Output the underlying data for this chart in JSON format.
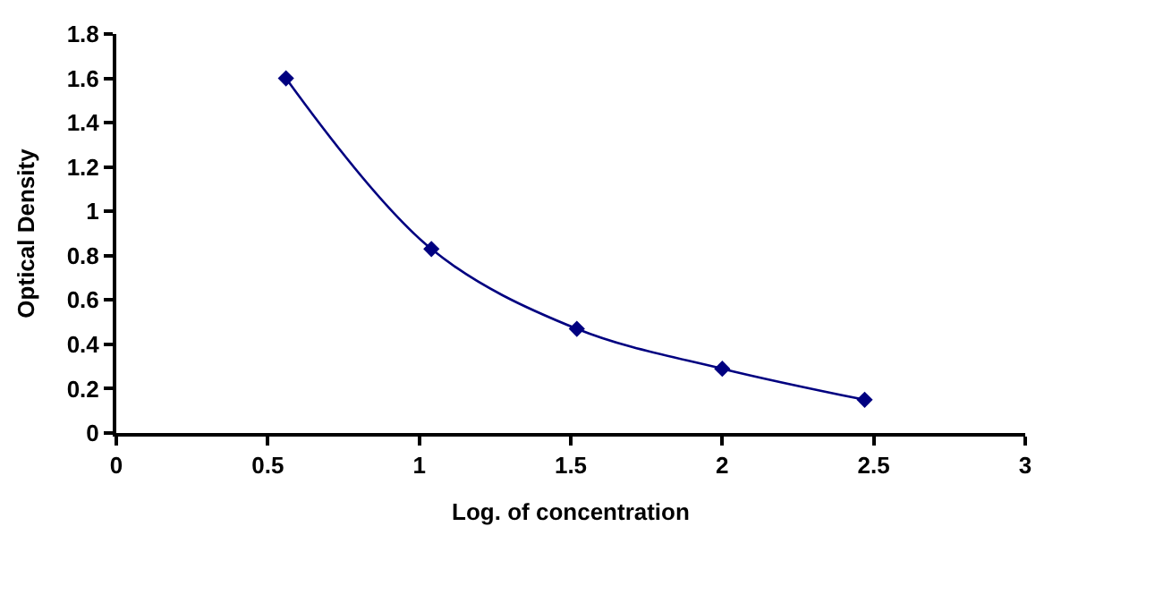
{
  "chart_data": {
    "type": "line",
    "xlabel": "Log. of concentration",
    "ylabel": "Optical Density",
    "x": [
      0.56,
      1.04,
      1.52,
      2.0,
      2.47
    ],
    "series": [
      {
        "color": "#000080",
        "values": [
          1.6,
          0.83,
          0.47,
          0.29,
          0.15
        ]
      }
    ],
    "xlim": [
      0,
      3
    ],
    "xticks": [
      0,
      0.5,
      1,
      1.5,
      2,
      2.5,
      3
    ],
    "ylim": [
      0,
      1.8
    ],
    "yticks": [
      0,
      0.2,
      0.4,
      0.6,
      0.8,
      1,
      1.2,
      1.4,
      1.6,
      1.8
    ],
    "marker": "diamond",
    "line_style": "solid"
  }
}
